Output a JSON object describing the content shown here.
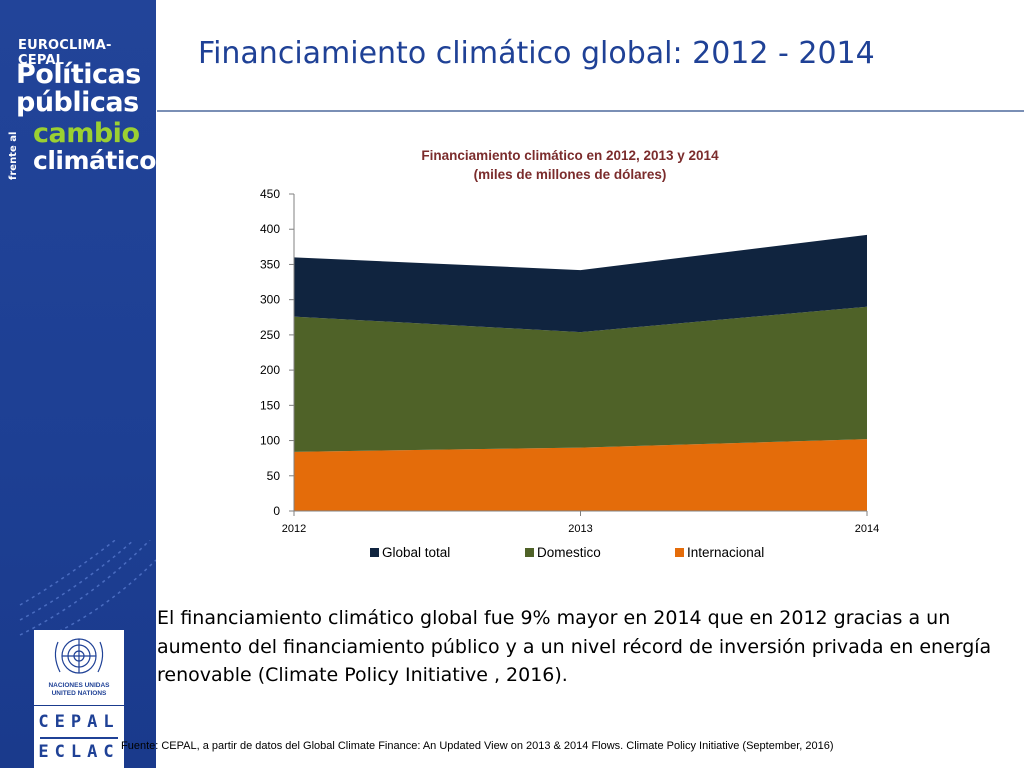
{
  "sidebar": {
    "brand": "EUROCLIMA-CEPAL",
    "title_line1": "Políticas",
    "title_line2": "públicas",
    "vertical_text": "frente al",
    "cambio": "cambio",
    "climatico": "climático",
    "un_text_line1": "NACIONES UNIDAS",
    "un_text_line2": "UNITED NATIONS",
    "cepal_line1": "CEPAL",
    "cepal_line2": "ECLAC",
    "colors": {
      "background": "#1f4196",
      "accent_green": "#9bd032"
    }
  },
  "header": {
    "title": "Financiamiento climático global: 2012 - 2014"
  },
  "chart_data": {
    "type": "area",
    "stacked": true,
    "title": "Financiamiento climático en 2012, 2013 y 2014",
    "subtitle": "(miles de millones de dólares)",
    "categories": [
      "2012",
      "2013",
      "2014"
    ],
    "ylim": [
      0,
      450
    ],
    "yticks": [
      0,
      50,
      100,
      150,
      200,
      250,
      300,
      350,
      400,
      450
    ],
    "legend_position": "bottom",
    "series": [
      {
        "name": "Internacional",
        "values": [
          84,
          90,
          102
        ],
        "color": "#e46c0a"
      },
      {
        "name": "Domestico",
        "values": [
          192,
          164,
          188
        ],
        "color": "#4f6228"
      },
      {
        "name": "Global total",
        "values": [
          84,
          88,
          102
        ],
        "color": "#10243f"
      }
    ],
    "legend_order": [
      "Global total",
      "Domestico",
      "Internacional"
    ]
  },
  "body": {
    "text": "El financiamiento climático global fue 9% mayor en 2014 que en 2012 gracias a un aumento del financiamiento público y a un nivel récord de inversión privada en energía renovable (Climate Policy Initiative , 2016).",
    "source": "Fuente: CEPAL, a partir de datos del Global Climate Finance: An Updated View on 2013 & 2014 Flows. Climate Policy Initiative (September, 2016)"
  }
}
